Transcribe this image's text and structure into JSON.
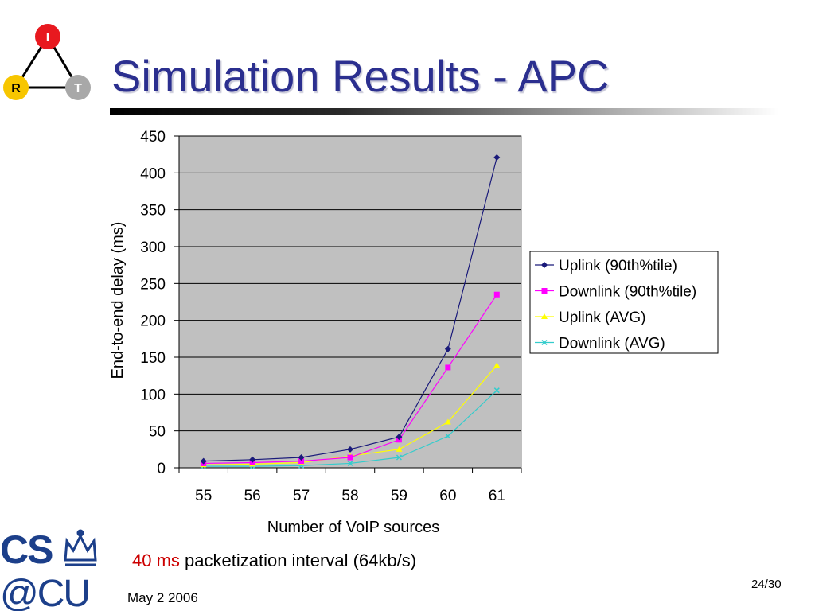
{
  "slide": {
    "title": "Simulation Results - APC",
    "caption_highlight": "40 ms",
    "caption_rest": " packetization interval (64kb/s)",
    "date": "May 2 2006",
    "page": "24/30"
  },
  "logos": {
    "irt": {
      "nodes": [
        "I",
        "R",
        "T"
      ],
      "colors": {
        "I": "#e8191f",
        "R": "#f7c600",
        "T": "#a8a8a8"
      }
    },
    "cscu": {
      "line1": "CS",
      "line2": "@CU",
      "color": "#1c3f8a"
    }
  },
  "chart_data": {
    "type": "line",
    "title": "",
    "xlabel": "Number of VoIP sources",
    "ylabel": "End-to-end delay (ms)",
    "categories": [
      "55",
      "56",
      "57",
      "58",
      "59",
      "60",
      "61"
    ],
    "ylim": [
      0,
      450
    ],
    "yticks": [
      "0",
      "50",
      "100",
      "150",
      "200",
      "250",
      "300",
      "350",
      "400",
      "450"
    ],
    "grid": true,
    "plot_background": "#c0c0c0",
    "legend_position": "right",
    "series": [
      {
        "name": "Uplink (90th%tile)",
        "color": "#1a1a7a",
        "marker": "diamond",
        "values": [
          9,
          11,
          14,
          25,
          42,
          161,
          421
        ]
      },
      {
        "name": "Downlink (90th%tile)",
        "color": "#ff00ff",
        "marker": "square",
        "values": [
          6,
          7,
          9,
          14,
          38,
          136,
          235
        ]
      },
      {
        "name": "Uplink (AVG)",
        "color": "#ffff00",
        "marker": "triangle",
        "values": [
          4,
          5,
          7,
          16,
          25,
          62,
          139
        ]
      },
      {
        "name": "Downlink (AVG)",
        "color": "#33cccc",
        "marker": "x",
        "values": [
          2,
          2,
          3,
          6,
          14,
          43,
          105
        ]
      }
    ]
  }
}
